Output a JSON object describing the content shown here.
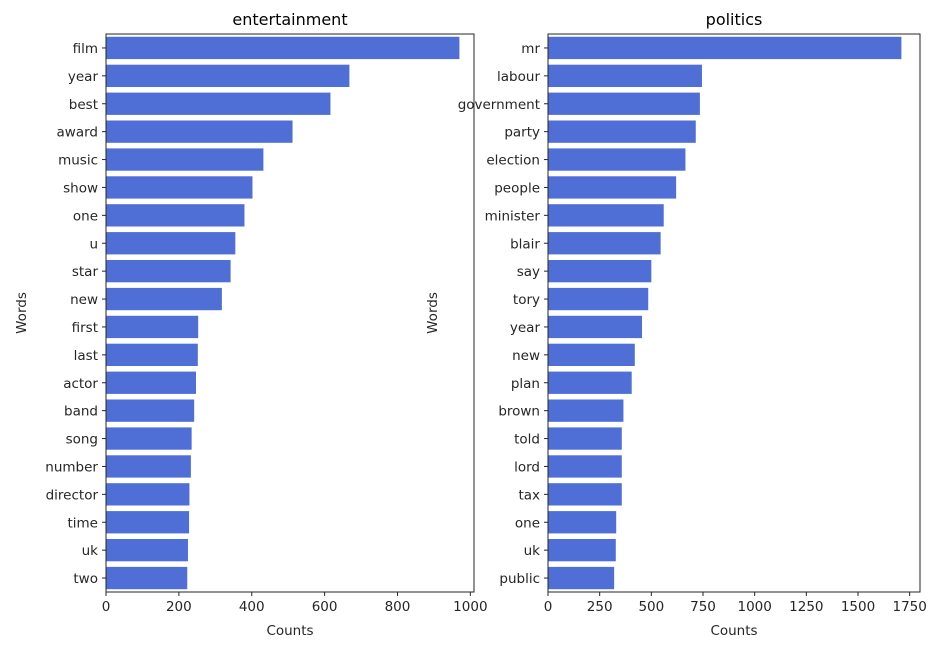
{
  "chart_data": [
    {
      "type": "bar",
      "orientation": "horizontal",
      "title": "entertainment",
      "xlabel": "Counts",
      "ylabel": "Words",
      "xlim": [
        0,
        1010
      ],
      "xticks": [
        0,
        200,
        400,
        600,
        800,
        1000
      ],
      "bar_color": "#4f6fd6",
      "categories": [
        "film",
        "year",
        "best",
        "award",
        "music",
        "show",
        "one",
        "u",
        "star",
        "new",
        "first",
        "last",
        "actor",
        "band",
        "song",
        "number",
        "director",
        "time",
        "uk",
        "two"
      ],
      "values": [
        970,
        668,
        616,
        512,
        432,
        402,
        380,
        355,
        342,
        318,
        253,
        252,
        247,
        242,
        235,
        233,
        229,
        228,
        225,
        223
      ]
    },
    {
      "type": "bar",
      "orientation": "horizontal",
      "title": "politics",
      "xlabel": "Counts",
      "ylabel": "Words",
      "xlim": [
        0,
        1800
      ],
      "xticks": [
        0,
        250,
        500,
        750,
        1000,
        1250,
        1500,
        1750
      ],
      "bar_color": "#4f6fd6",
      "categories": [
        "mr",
        "labour",
        "government",
        "party",
        "election",
        "people",
        "minister",
        "blair",
        "say",
        "tory",
        "year",
        "new",
        "plan",
        "brown",
        "told",
        "lord",
        "tax",
        "one",
        "uk",
        "public"
      ],
      "values": [
        1710,
        745,
        735,
        715,
        665,
        620,
        560,
        545,
        500,
        485,
        455,
        420,
        405,
        365,
        357,
        357,
        357,
        330,
        328,
        320
      ]
    }
  ]
}
